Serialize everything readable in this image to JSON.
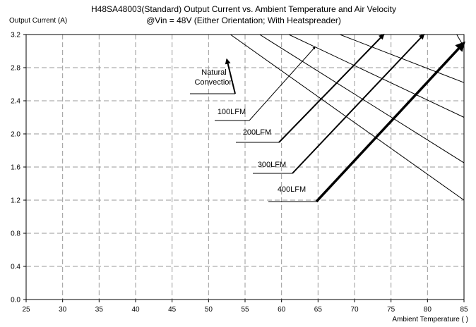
{
  "chart_data": {
    "type": "line",
    "title": "H48SA48003(Standard)  Output Current vs. Ambient Temperature and Air Velocity",
    "subtitle": "@Vin = 48V (Either Orientation; With Heatspreader)",
    "ylabel": "Output Current (A)",
    "xlabel": "Ambient Temperature (  )",
    "xlim": [
      25,
      85
    ],
    "ylim": [
      0,
      3.2
    ],
    "x_ticks": [
      25,
      30,
      35,
      40,
      45,
      50,
      55,
      60,
      65,
      70,
      75,
      80,
      85
    ],
    "y_ticks": [
      0.0,
      0.4,
      0.8,
      1.2,
      1.6,
      2.0,
      2.4,
      2.8,
      3.2
    ],
    "y_tick_labels": [
      "0.0",
      "0.4",
      "0.8",
      "1.2",
      "1.6",
      "2.0",
      "2.4",
      "2.8",
      "3.2"
    ],
    "grid": true,
    "series": [
      {
        "name": "Natural Convection",
        "x": [
          25,
          53,
          85
        ],
        "y": [
          3.2,
          3.2,
          1.2
        ]
      },
      {
        "name": "100LFM",
        "x": [
          25,
          57,
          85
        ],
        "y": [
          3.2,
          3.2,
          1.65
        ]
      },
      {
        "name": "200LFM",
        "x": [
          25,
          61,
          85
        ],
        "y": [
          3.2,
          3.2,
          2.2
        ]
      },
      {
        "name": "300LFM",
        "x": [
          25,
          68,
          85
        ],
        "y": [
          3.2,
          3.2,
          2.62
        ]
      },
      {
        "name": "400LFM",
        "x": [
          25,
          84,
          85
        ],
        "y": [
          3.2,
          3.2,
          3.05
        ]
      }
    ],
    "annotations": [
      {
        "lines": [
          "Natural",
          "Convection"
        ],
        "x": 52.5,
        "y": 2.9,
        "weight": "bold"
      },
      {
        "lines": [
          "100LFM"
        ],
        "x": 64.6,
        "y": 3.05,
        "weight": "normal"
      },
      {
        "lines": [
          "200LFM"
        ],
        "x": 74.0,
        "y": 3.2,
        "weight": "bold"
      },
      {
        "lines": [
          "300LFM"
        ],
        "x": 79.5,
        "y": 3.2,
        "weight": "bold"
      },
      {
        "lines": [
          "400LFM"
        ],
        "x": 85.0,
        "y": 3.1,
        "weight": "heavy"
      }
    ]
  }
}
